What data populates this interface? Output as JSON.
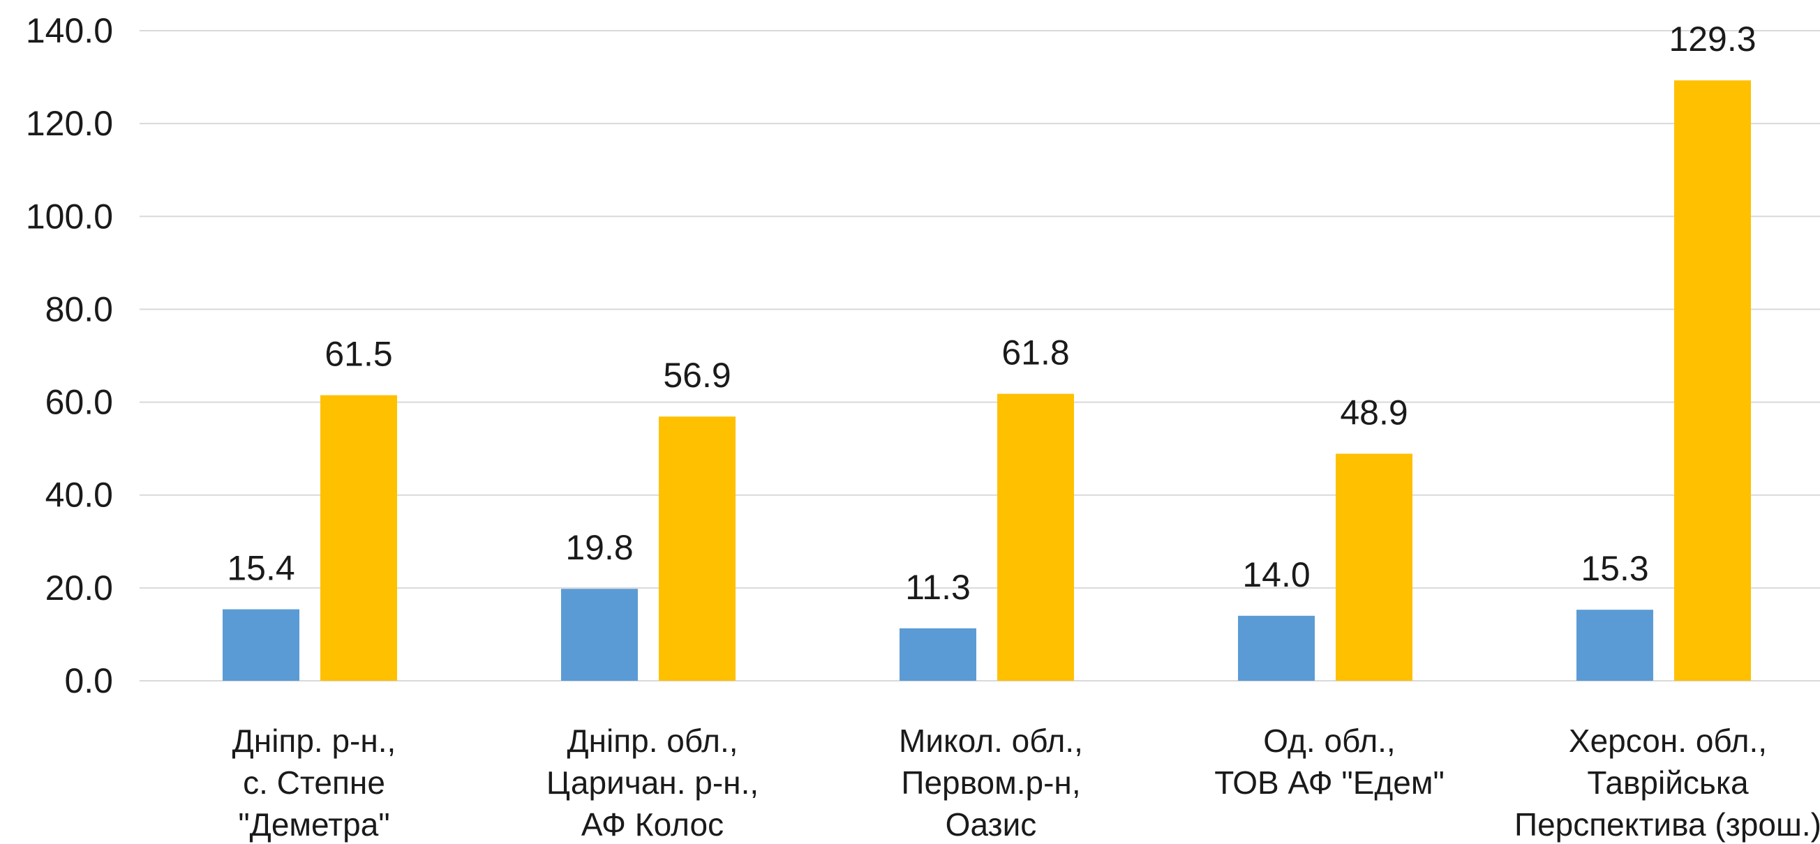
{
  "chart_data": {
    "type": "bar",
    "categories": [
      [
        "Дніпр. р-н.,",
        "с. Степне",
        "\"Деметра\""
      ],
      [
        "Дніпр. обл.,",
        "Царичан. р-н.,",
        "АФ Колос"
      ],
      [
        "Микол. обл.,",
        "Первом.р-н,",
        "Оазис"
      ],
      [
        "Од. обл.,",
        "ТОВ АФ \"Едем\""
      ],
      [
        "Херсон. обл.,",
        "Таврійська",
        "Перспектива (зрош.)"
      ]
    ],
    "series": [
      {
        "color": "#5b9bd5",
        "values": [
          15.4,
          19.8,
          11.3,
          14.0,
          15.3
        ]
      },
      {
        "color": "#ffc000",
        "values": [
          61.5,
          56.9,
          61.8,
          48.9,
          129.3
        ]
      }
    ],
    "yticks": [
      "0.0",
      "20.0",
      "40.0",
      "60.0",
      "80.0",
      "100.0",
      "120.0",
      "140.0"
    ],
    "ylim": [
      0,
      140
    ],
    "value_format_decimals": 1,
    "grid": true,
    "title": "",
    "xlabel": "",
    "ylabel": ""
  }
}
